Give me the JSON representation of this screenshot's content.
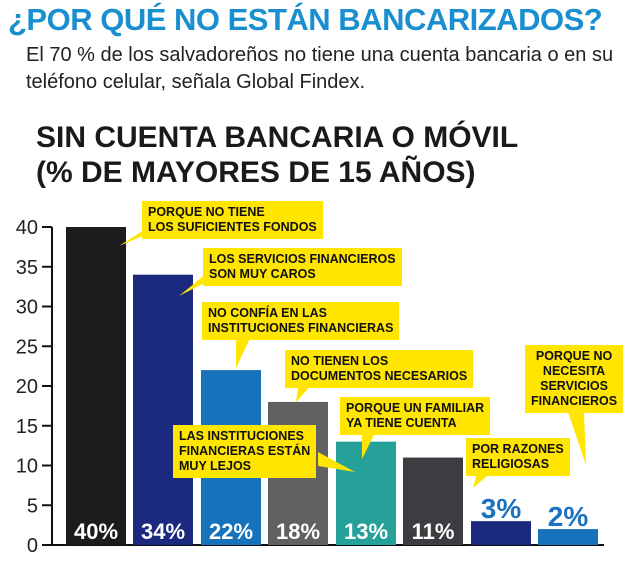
{
  "header": {
    "headline": "¿POR QUÉ NO ESTÁN BANCARIZADOS?",
    "subhead": "El 70 % de los salvadoreños no tiene una cuenta bancaria o en su teléfono celular, señala Global Findex."
  },
  "colors": {
    "headline": "#1a8fd0",
    "callout": "#ffe500",
    "axis": "#111111",
    "accent_text": "#1a72c0"
  },
  "chart_data": {
    "type": "bar",
    "title": "SIN CUENTA BANCARIA O MÓVIL (% DE MAYORES DE 15 AÑOS)",
    "title_lines": [
      "SIN CUENTA BANCARIA O MÓVIL",
      "(% DE MAYORES DE 15 AÑOS)"
    ],
    "categories": [
      "PORQUE NO TIENE LOS SUFICIENTES FONDOS",
      "LOS SERVICIOS FINANCIEROS SON MUY CAROS",
      "NO CONFÍA EN LAS INSTITUCIONES FINANCIERAS",
      "NO TIENEN LOS DOCUMENTOS NECESARIOS",
      "PORQUE UN FAMILIAR YA TIENE CUENTA",
      "LAS INSTITUCIONES FINANCIERAS ESTÁN MUY LEJOS",
      "POR RAZONES RELIGIOSAS",
      "PORQUE NO NECESITA SERVICIOS FINANCIEROS"
    ],
    "category_lines": [
      [
        "PORQUE NO TIENE",
        "LOS SUFICIENTES FONDOS"
      ],
      [
        "LOS SERVICIOS FINANCIEROS",
        "SON MUY CAROS"
      ],
      [
        "NO CONFÍA EN LAS",
        "INSTITUCIONES FINANCIERAS"
      ],
      [
        "NO TIENEN LOS",
        "DOCUMENTOS NECESARIOS"
      ],
      [
        "PORQUE UN FAMILIAR",
        "YA TIENE CUENTA"
      ],
      [
        "LAS INSTITUCIONES",
        "FINANCIERAS ESTÁN",
        "MUY LEJOS"
      ],
      [
        "POR RAZONES",
        "RELIGIOSAS"
      ],
      [
        "PORQUE NO",
        "NECESITA",
        "SERVICIOS",
        "FINANCIEROS"
      ]
    ],
    "values": [
      40,
      34,
      22,
      18,
      13,
      11,
      3,
      2
    ],
    "value_labels": [
      "40%",
      "34%",
      "22%",
      "18%",
      "13%",
      "11%",
      "3%",
      "2%"
    ],
    "bar_colors": [
      "#1c1c1e",
      "#1b2a7e",
      "#1572bb",
      "#606163",
      "#26a19a",
      "#3c3d40",
      "#1b2a7e",
      "#1572bb"
    ],
    "ylim": [
      0,
      40
    ],
    "yticks": [
      0,
      5,
      10,
      15,
      20,
      25,
      30,
      35,
      40
    ],
    "grid": false,
    "xlabel": "",
    "ylabel": ""
  }
}
